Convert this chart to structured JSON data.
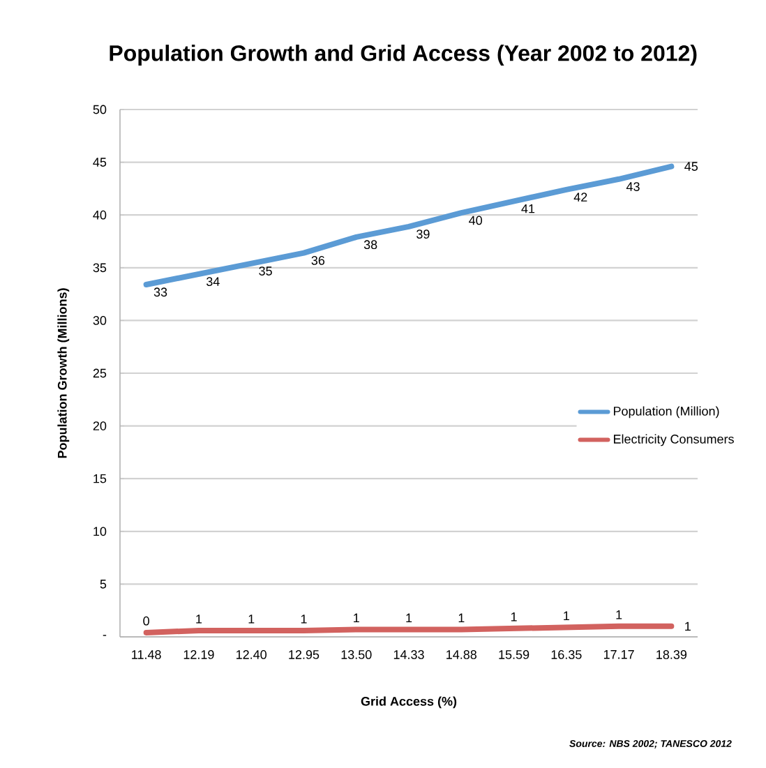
{
  "chart_data": {
    "type": "line",
    "title": "Population Growth and Grid Access (Year 2002 to 2012)",
    "xlabel": "Grid Access (%)",
    "ylabel": "Population Growth   (Millions)",
    "categories": [
      "11.48",
      "12.19",
      "12.40",
      "12.95",
      "13.50",
      "14.33",
      "14.88",
      "15.59",
      "16.35",
      "17.17",
      "18.39"
    ],
    "series": [
      {
        "name": "Population (Million)",
        "color": "#5b9bd5",
        "values": [
          33.4,
          34.4,
          35.4,
          36.4,
          37.9,
          38.9,
          40.2,
          41.3,
          42.4,
          43.4,
          44.6
        ],
        "value_labels": [
          "33",
          "34",
          "35",
          "36",
          "38",
          "39",
          "40",
          "41",
          "42",
          "43",
          "45"
        ]
      },
      {
        "name": "Electricity Consumers",
        "color": "#d2625f",
        "values": [
          0.4,
          0.6,
          0.6,
          0.6,
          0.7,
          0.7,
          0.7,
          0.8,
          0.9,
          1.0,
          1.0
        ],
        "value_labels": [
          "0",
          "1",
          "1",
          "1",
          "1",
          "1",
          "1",
          "1",
          "1",
          "1",
          "1"
        ]
      }
    ],
    "ylim": [
      0,
      50
    ],
    "yticks": [
      {
        "value": 0,
        "label": "-"
      },
      5,
      10,
      15,
      20,
      25,
      30,
      35,
      40,
      45,
      50
    ],
    "grid": "y",
    "legend": "right",
    "marker": "none",
    "line_style": "solid",
    "annotations": [
      "Source: NBS 2002; TANESCO 2012"
    ]
  }
}
